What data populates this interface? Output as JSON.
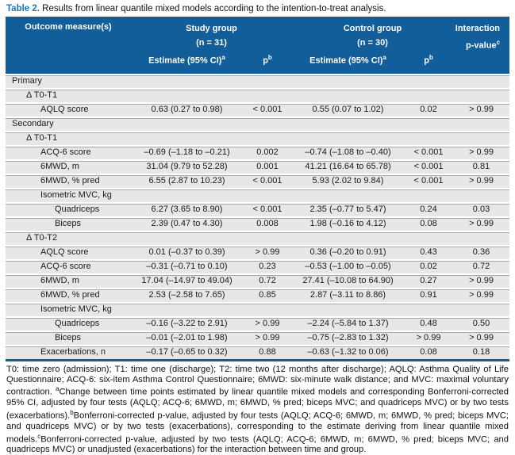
{
  "title": {
    "label": "Table 2.",
    "text": " Results from linear quantile mixed models according to the intention-to-treat analysis."
  },
  "colors": {
    "header_bg": "#115e9b",
    "caption_accent": "#1c75bb",
    "row_bg": "#e7e7e7",
    "row_line": "#a8a8a8"
  },
  "header": {
    "outcome": "Outcome measure(s)",
    "groups": [
      {
        "name": "Study group",
        "n": "(n = 31)"
      },
      {
        "name": "Control group",
        "n": "(n = 30)"
      }
    ],
    "estimate_label": "Estimate (95% CI)",
    "estimate_sup": "a",
    "p_label": "p",
    "p_sup": "b",
    "interaction_line1": "Interaction",
    "interaction_line2": "p-value",
    "interaction_sup": "c"
  },
  "rows": [
    {
      "label": "Primary",
      "indent": 0,
      "cells": null
    },
    {
      "label": "Δ T0-T1",
      "indent": 1,
      "cells": null
    },
    {
      "label": "AQLQ score",
      "indent": 2,
      "cells": [
        "0.63 (0.27 to 0.98)",
        "< 0.001",
        "0.55 (0.07 to 1.02)",
        "0.02",
        "> 0.99"
      ]
    },
    {
      "label": "Secondary",
      "indent": 0,
      "cells": null
    },
    {
      "label": "Δ T0-T1",
      "indent": 1,
      "cells": null
    },
    {
      "label": "ACQ-6 score",
      "indent": 2,
      "cells": [
        "–0.69 (–1.18 to –0.21)",
        "0.002",
        "–0.74 (–1.08 to –0.40)",
        "< 0.001",
        "> 0.99"
      ]
    },
    {
      "label": "6MWD, m",
      "indent": 2,
      "cells": [
        "31.04 (9.79 to 52.28)",
        "0.001",
        "41.21 (16.64 to 65.78)",
        "< 0.001",
        "0.81"
      ]
    },
    {
      "label": "6MWD, % pred",
      "indent": 2,
      "cells": [
        "6.55 (2.87 to 10.23)",
        "< 0.001",
        "5.93 (2.02 to 9.84)",
        "< 0.001",
        "> 0.99"
      ]
    },
    {
      "label": "Isometric MVC, kg",
      "indent": 2,
      "cells": null
    },
    {
      "label": "Quadriceps",
      "indent": 3,
      "cells": [
        "6.27 (3.65 to 8.90)",
        "< 0.001",
        "2.35 (–0.77 to 5.47)",
        "0.24",
        "0.03"
      ]
    },
    {
      "label": "Biceps",
      "indent": 3,
      "cells": [
        "2.39 (0.47 to 4.30)",
        "0.008",
        "1.98 (–0.16 to 4.12)",
        "0.08",
        "> 0.99"
      ]
    },
    {
      "label": "Δ T0-T2",
      "indent": 1,
      "cells": null
    },
    {
      "label": "AQLQ score",
      "indent": 2,
      "cells": [
        "0.01 (–0.37 to 0.39)",
        "> 0.99",
        "0.36 (–0.20 to 0.91)",
        "0.43",
        "0.36"
      ]
    },
    {
      "label": "ACQ-6 score",
      "indent": 2,
      "cells": [
        "–0.31 (–0.71 to 0.10)",
        "0.23",
        "–0.53 (–1.00 to –0.05)",
        "0.02",
        "0.72"
      ]
    },
    {
      "label": "6MWD, m",
      "indent": 2,
      "cells": [
        "17.04 (–14.97 to 49.04)",
        "0.72",
        "27.41 (–10.08 to 64.90)",
        "0.27",
        "> 0.99"
      ]
    },
    {
      "label": "6MWD, % pred",
      "indent": 2,
      "cells": [
        "2.53 (–2.58 to 7.65)",
        "0.85",
        "2.87 (–3.11 to 8.86)",
        "0.91",
        "> 0.99"
      ]
    },
    {
      "label": "Isometric MVC, kg",
      "indent": 2,
      "cells": null
    },
    {
      "label": "Quadriceps",
      "indent": 3,
      "cells": [
        "–0.16 (–3.22 to 2.91)",
        "> 0.99",
        "–2.24 (–5.84 to 1.37)",
        "0.48",
        "0.50"
      ]
    },
    {
      "label": "Biceps",
      "indent": 3,
      "cells": [
        "–0.01 (–2.01 to 1.98)",
        "> 0.99",
        "–0.75 (–2.83 to 1.32)",
        "> 0.99",
        "> 0.99"
      ]
    },
    {
      "label": "Exacerbations, n",
      "indent": 2,
      "cells": [
        "–0.17 (–0.65 to 0.32)",
        "0.88",
        "–0.63 (–1.32 to 0.06)",
        "0.08",
        "0.18"
      ]
    }
  ],
  "footnote": {
    "segments": [
      {
        "text": "T0: time zero (admission); T1: time one (discharge); T2: time two (12 months after discharge); AQLQ: Asthma Quality of Life Questionnaire; ACQ-6: six-item Asthma Control Questionnaire; 6MWD: six-minute walk distance; and MVC: maximal voluntary contraction. "
      },
      {
        "sup": "a"
      },
      {
        "text": "Change between time points estimated by linear quantile mixed models and corresponding Bonferroni-corrected 95% CI, adjusted by four tests (AQLQ; ACQ-6; 6MWD, m; 6MWD, % pred; biceps MVC; and quadriceps MVC) or by two tests (exacerbations)."
      },
      {
        "sup": "b"
      },
      {
        "text": "Bonferroni-corrected p-value, adjusted by four tests (AQLQ; ACQ-6; 6MWD, m; 6MWD, % pred; biceps MVC; and quadriceps MVC) or by two tests (exacerbations), corresponding to the estimate deriving from linear quantile mixed models."
      },
      {
        "sup": "c"
      },
      {
        "text": "Bonferroni-corrected p-value, adjusted by two tests (AQLQ; ACQ-6; 6MWD, m; 6MWD, % pred; biceps MVC; and quadriceps MVC) or unadjusted (exacerbations) for the interaction between time and group."
      }
    ]
  }
}
